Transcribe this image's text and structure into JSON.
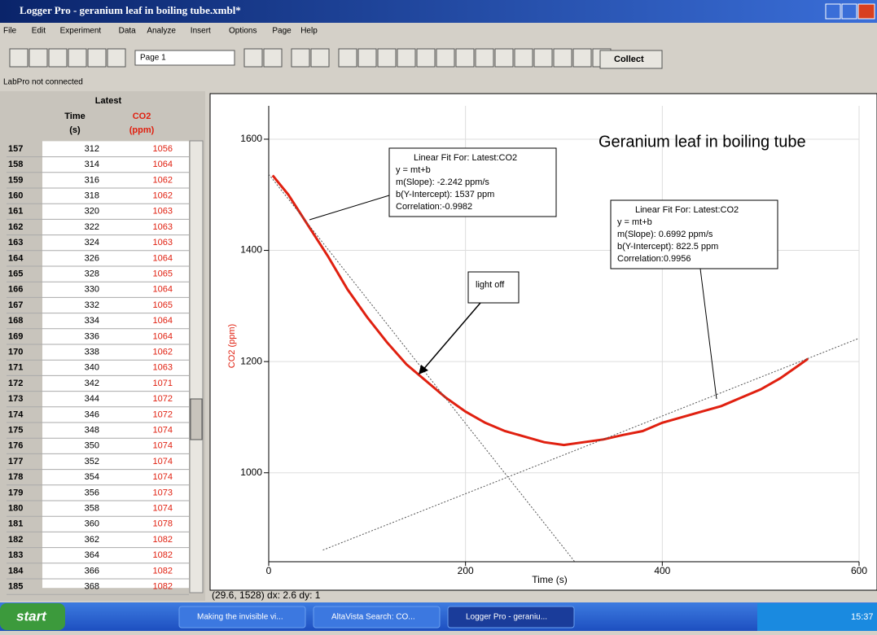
{
  "window": {
    "title": "Logger Pro - geranium leaf in boiling tube.xmbl*",
    "menu": [
      "File",
      "Edit",
      "Experiment",
      "Data",
      "Analyze",
      "Insert",
      "Options",
      "Page",
      "Help"
    ],
    "page_select": "Page 1",
    "collect": "Collect",
    "status": "LabPro not connected",
    "coords": "(29.6, 1528) dx: 2.6 dy: 1"
  },
  "table": {
    "group": "Latest",
    "columns": [
      [
        "Time",
        "(s)"
      ],
      [
        "CO2",
        "(ppm)"
      ]
    ],
    "rows": [
      [
        157,
        312,
        1056
      ],
      [
        158,
        314,
        1064
      ],
      [
        159,
        316,
        1062
      ],
      [
        160,
        318,
        1062
      ],
      [
        161,
        320,
        1063
      ],
      [
        162,
        322,
        1063
      ],
      [
        163,
        324,
        1063
      ],
      [
        164,
        326,
        1064
      ],
      [
        165,
        328,
        1065
      ],
      [
        166,
        330,
        1064
      ],
      [
        167,
        332,
        1065
      ],
      [
        168,
        334,
        1064
      ],
      [
        169,
        336,
        1064
      ],
      [
        170,
        338,
        1062
      ],
      [
        171,
        340,
        1063
      ],
      [
        172,
        342,
        1071
      ],
      [
        173,
        344,
        1072
      ],
      [
        174,
        346,
        1072
      ],
      [
        175,
        348,
        1074
      ],
      [
        176,
        350,
        1074
      ],
      [
        177,
        352,
        1074
      ],
      [
        178,
        354,
        1074
      ],
      [
        179,
        356,
        1073
      ],
      [
        180,
        358,
        1074
      ],
      [
        181,
        360,
        1078
      ],
      [
        182,
        362,
        1082
      ],
      [
        183,
        364,
        1082
      ],
      [
        184,
        366,
        1082
      ],
      [
        185,
        368,
        1082
      ]
    ]
  },
  "chart_data": {
    "type": "line",
    "title": "Geranium leaf in boiling tube",
    "x_label": "Time (s)",
    "y_label": "CO2 (ppm)",
    "xlim": [
      0,
      600
    ],
    "ylim": [
      840,
      1660
    ],
    "xticks": [
      0,
      200,
      400,
      600
    ],
    "yticks": [
      1000,
      1200,
      1400,
      1600
    ],
    "grid": true,
    "series": [
      {
        "name": "CO2",
        "color": "#e02010",
        "x": [
          4,
          20,
          40,
          60,
          80,
          100,
          120,
          140,
          160,
          180,
          200,
          220,
          240,
          260,
          280,
          300,
          320,
          340,
          360,
          380,
          400,
          420,
          440,
          460,
          480,
          500,
          520,
          540,
          548
        ],
        "values": [
          1535,
          1500,
          1445,
          1390,
          1330,
          1280,
          1235,
          1195,
          1165,
          1135,
          1110,
          1090,
          1075,
          1065,
          1055,
          1050,
          1055,
          1060,
          1068,
          1075,
          1090,
          1100,
          1110,
          1120,
          1135,
          1150,
          1170,
          1195,
          1205
        ]
      },
      {
        "color": "#555555",
        "dashed": true,
        "x": [
          0,
          311
        ],
        "values": [
          1537,
          840
        ]
      },
      {
        "color": "#555555",
        "dashed": true,
        "x": [
          55,
          600
        ],
        "values": [
          861,
          1242
        ]
      }
    ],
    "fit_boxes": [
      {
        "lines": [
          "Linear Fit For:  Latest:CO2",
          "y = mt+b",
          "m(Slope): -2.242 ppm/s",
          "b(Y-Intercept): 1537 ppm",
          "Correlation:-0.9982"
        ]
      },
      {
        "lines": [
          "Linear Fit For:  Latest:CO2",
          "y = mt+b",
          "m(Slope): 0.6992 ppm/s",
          "b(Y-Intercept): 822.5 ppm",
          "Correlation:0.9956"
        ]
      }
    ],
    "annotation": "light off"
  },
  "taskbar": {
    "start": "start",
    "tasks": [
      "Making the invisible vi...",
      "AltaVista Search: CO...",
      "Logger Pro - geraniu..."
    ],
    "clock": "15:37"
  }
}
